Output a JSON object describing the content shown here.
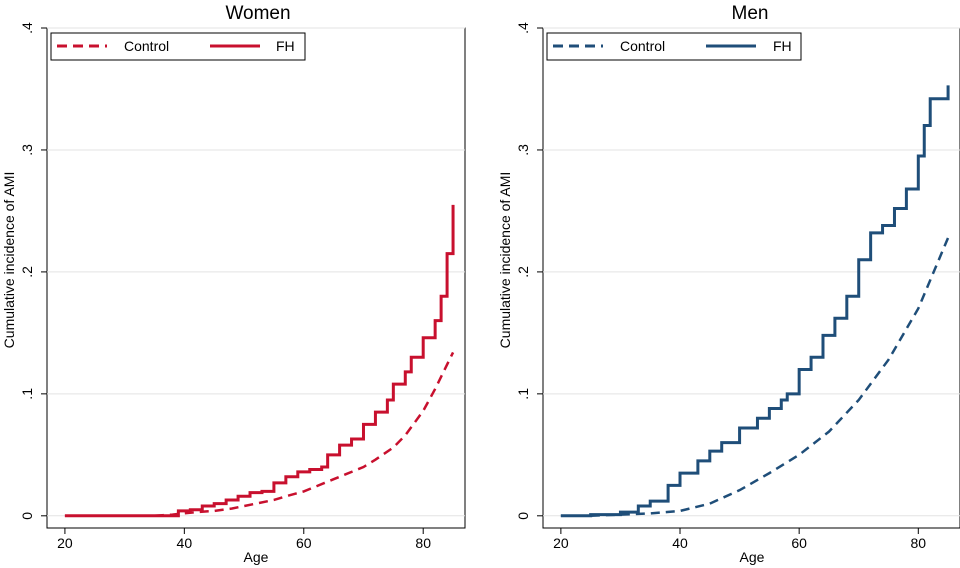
{
  "chart_data": [
    {
      "type": "line",
      "title": "Women",
      "xlabel": "Age",
      "ylabel": "Cumulative incidence of AMI",
      "xlim": [
        17,
        87
      ],
      "ylim": [
        -0.01,
        0.4
      ],
      "x_ticks": [
        20,
        40,
        60,
        80
      ],
      "x_tick_labels": [
        "20",
        "40",
        "60",
        "80"
      ],
      "y_ticks": [
        0,
        0.1,
        0.2,
        0.3,
        0.4
      ],
      "y_tick_labels": [
        "0",
        ".1",
        ".2",
        ".3",
        ".4"
      ],
      "grid": true,
      "legend_position": "top-left",
      "color": "#c8102e",
      "series": [
        {
          "name": "Control",
          "style": "dashed",
          "x": [
            20,
            35,
            38,
            40,
            42,
            45,
            48,
            50,
            52,
            55,
            57,
            60,
            62,
            65,
            67,
            70,
            72,
            75,
            77,
            80,
            82,
            85
          ],
          "y": [
            0,
            0,
            0.001,
            0.002,
            0.003,
            0.004,
            0.006,
            0.008,
            0.01,
            0.013,
            0.016,
            0.02,
            0.024,
            0.03,
            0.034,
            0.04,
            0.046,
            0.056,
            0.066,
            0.086,
            0.104,
            0.134
          ]
        },
        {
          "name": "FH",
          "style": "solid",
          "x": [
            20,
            37,
            39,
            41,
            43,
            45,
            47,
            49,
            51,
            53,
            55,
            57,
            59,
            61,
            63,
            64,
            66,
            68,
            70,
            72,
            74,
            75,
            77,
            78,
            80,
            82,
            83,
            84,
            85
          ],
          "y": [
            0,
            0,
            0.004,
            0.005,
            0.008,
            0.01,
            0.013,
            0.016,
            0.019,
            0.02,
            0.027,
            0.032,
            0.036,
            0.038,
            0.04,
            0.05,
            0.058,
            0.063,
            0.075,
            0.085,
            0.095,
            0.108,
            0.118,
            0.13,
            0.146,
            0.16,
            0.18,
            0.215,
            0.255
          ]
        }
      ]
    },
    {
      "type": "line",
      "title": "Men",
      "xlabel": "Age",
      "ylabel": "Cumulative incidence of AMI",
      "xlim": [
        17,
        87
      ],
      "ylim": [
        -0.01,
        0.4
      ],
      "x_ticks": [
        20,
        40,
        60,
        80
      ],
      "x_tick_labels": [
        "20",
        "40",
        "60",
        "80"
      ],
      "y_ticks": [
        0,
        0.1,
        0.2,
        0.3,
        0.4
      ],
      "y_tick_labels": [
        "0",
        ".1",
        ".2",
        ".3",
        ".4"
      ],
      "grid": true,
      "legend_position": "top-left",
      "color": "#1f4e79",
      "series": [
        {
          "name": "Control",
          "style": "dashed",
          "x": [
            20,
            25,
            30,
            35,
            40,
            45,
            50,
            55,
            60,
            65,
            70,
            75,
            80,
            85
          ],
          "y": [
            0,
            0,
            0.001,
            0.002,
            0.004,
            0.01,
            0.021,
            0.035,
            0.05,
            0.069,
            0.095,
            0.128,
            0.17,
            0.228
          ]
        },
        {
          "name": "FH",
          "style": "solid",
          "x": [
            20,
            25,
            30,
            33,
            35,
            38,
            40,
            43,
            45,
            47,
            50,
            53,
            55,
            57,
            58,
            60,
            62,
            64,
            66,
            68,
            70,
            72,
            74,
            76,
            78,
            80,
            81,
            82,
            84,
            85
          ],
          "y": [
            0,
            0.001,
            0.003,
            0.008,
            0.012,
            0.025,
            0.035,
            0.045,
            0.053,
            0.06,
            0.072,
            0.08,
            0.088,
            0.095,
            0.1,
            0.12,
            0.13,
            0.148,
            0.162,
            0.18,
            0.21,
            0.232,
            0.238,
            0.252,
            0.268,
            0.295,
            0.32,
            0.342,
            0.342,
            0.353
          ]
        }
      ]
    }
  ]
}
